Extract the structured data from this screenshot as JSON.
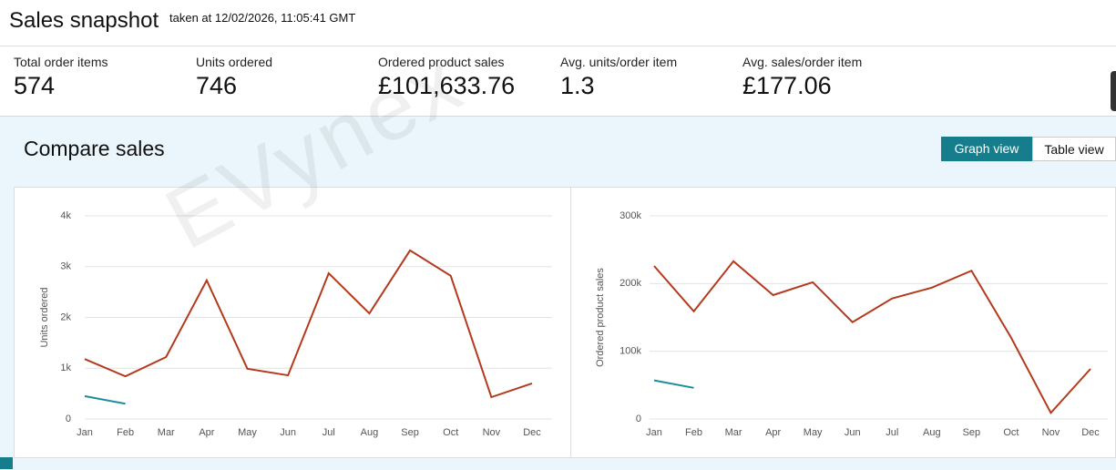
{
  "header": {
    "title": "Sales snapshot",
    "subtitle": "taken at 12/02/2026, 11:05:41 GMT"
  },
  "metrics": [
    {
      "label": "Total order items",
      "value": "574"
    },
    {
      "label": "Units ordered",
      "value": "746"
    },
    {
      "label": "Ordered product sales",
      "value": "£101,633.76"
    },
    {
      "label": "Avg. units/order item",
      "value": "1.3"
    },
    {
      "label": "Avg. sales/order item",
      "value": "£177.06"
    }
  ],
  "compare": {
    "title": "Compare sales",
    "buttons": [
      "Graph view",
      "Table view"
    ]
  },
  "watermark": "EVynex",
  "chart_data": [
    {
      "type": "line",
      "y_label": "Units ordered",
      "categories": [
        "Jan",
        "Feb",
        "Mar",
        "Apr",
        "May",
        "Jun",
        "Jul",
        "Aug",
        "Sep",
        "Oct",
        "Nov",
        "Dec"
      ],
      "series": [
        {
          "color": "#b33a1c",
          "values": [
            1180,
            840,
            1220,
            2730,
            990,
            860,
            2870,
            2080,
            3320,
            2820,
            430,
            700
          ]
        },
        {
          "color": "#1a8e9c",
          "values": [
            450,
            300,
            null,
            null,
            null,
            null,
            null,
            null,
            null,
            null,
            null,
            null
          ]
        }
      ],
      "ylim": [
        0,
        4000
      ],
      "yticks": [
        0,
        {
          "value": 1000,
          "label": "1k"
        },
        {
          "value": 2000,
          "label": "2k"
        },
        {
          "value": 3000,
          "label": "3k"
        },
        {
          "value": 4000,
          "label": "4k"
        }
      ],
      "grid": true
    },
    {
      "type": "line",
      "y_label": "Ordered product sales",
      "categories": [
        "Jan",
        "Feb",
        "Mar",
        "Apr",
        "May",
        "Jun",
        "Jul",
        "Aug",
        "Sep",
        "Oct",
        "Nov",
        "Dec"
      ],
      "series": [
        {
          "color": "#b33a1c",
          "values": [
            226000,
            159000,
            233000,
            183000,
            202000,
            143000,
            178000,
            194000,
            219000,
            120000,
            9000,
            74000
          ]
        },
        {
          "color": "#1a8e9c",
          "values": [
            57000,
            46000,
            null,
            null,
            null,
            null,
            null,
            null,
            null,
            null,
            null,
            null
          ]
        }
      ],
      "ylim": [
        0,
        300000
      ],
      "yticks": [
        0,
        {
          "value": 100000,
          "label": "100k"
        },
        {
          "value": 200000,
          "label": "200k"
        },
        {
          "value": 300000,
          "label": "300k"
        }
      ],
      "grid": true
    }
  ]
}
